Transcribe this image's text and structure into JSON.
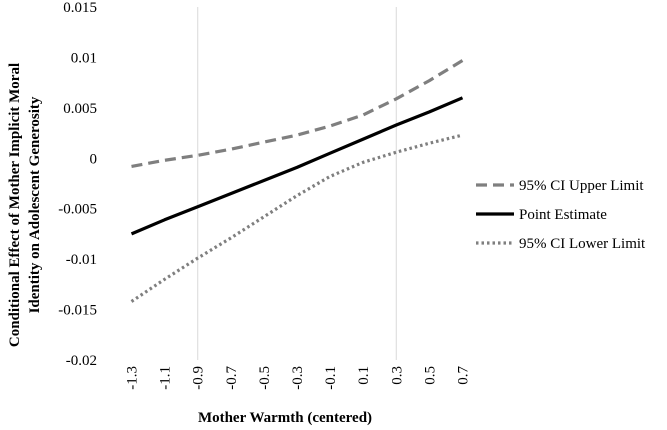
{
  "chart_data": {
    "type": "line",
    "xlabel": "Mother Warmth (centered)",
    "ylabel_lines": [
      "Conditional Effect of Mother Implicit Moral",
      "Identity on Adolescent Generosity"
    ],
    "x": [
      -1.3,
      -1.1,
      -0.9,
      -0.7,
      -0.5,
      -0.3,
      -0.1,
      0.1,
      0.3,
      0.5,
      0.7
    ],
    "x_tick_labels": [
      "-1.3",
      "-1.1",
      "-0.9",
      "-0.7",
      "-0.5",
      "-0.3",
      "-0.1",
      "0.1",
      "0.3",
      "0.5",
      "0.7"
    ],
    "xlim": [
      -1.4,
      0.8
    ],
    "ylim": [
      -0.02,
      0.015
    ],
    "y_ticks": [
      0.015,
      0.01,
      0.005,
      0,
      -0.005,
      -0.01,
      -0.015,
      -0.02
    ],
    "y_tick_labels": [
      "0.015",
      "0.01",
      "0.005",
      "0",
      "-0.005",
      "-0.01",
      "-0.015",
      "-0.02"
    ],
    "grid": {
      "vertical_at": [
        -0.9,
        0.3
      ]
    },
    "legend_position": "right",
    "series": [
      {
        "name": "95% CI Upper Limit",
        "style": "dashed",
        "color": "#7f7f7f",
        "values": [
          -0.0008,
          -0.0002,
          0.0003,
          0.0009,
          0.0016,
          0.0023,
          0.0032,
          0.0043,
          0.0059,
          0.0077,
          0.0097
        ]
      },
      {
        "name": "Point Estimate",
        "style": "solid",
        "color": "#000000",
        "values": [
          -0.0075,
          -0.0061,
          -0.0048,
          -0.0035,
          -0.0022,
          -0.0009,
          0.0005,
          0.0019,
          0.0033,
          0.0046,
          0.006
        ]
      },
      {
        "name": "95% CI Lower Limit",
        "style": "dotted",
        "color": "#7f7f7f",
        "values": [
          -0.0142,
          -0.012,
          -0.0099,
          -0.0079,
          -0.0058,
          -0.0037,
          -0.0018,
          -0.0004,
          0.0006,
          0.0015,
          0.0023
        ]
      }
    ]
  }
}
